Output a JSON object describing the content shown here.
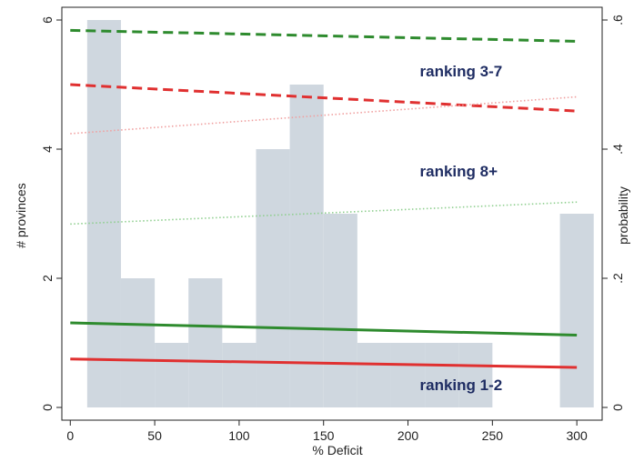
{
  "chart_data": {
    "type": "bar",
    "x_label": "% Deficit",
    "y_label_left": "# provinces",
    "y_label_right": "probability",
    "x_ticks": [
      "0",
      "50",
      "100",
      "150",
      "200",
      "250",
      "300"
    ],
    "y_left_ticks": [
      "0",
      "2",
      "4",
      "6"
    ],
    "y_right_ticks": [
      "0",
      ".2",
      ".4",
      ".6"
    ],
    "x_range": [
      -5,
      315
    ],
    "y_left_range": [
      0,
      6
    ],
    "y_right_range": [
      0,
      0.6
    ],
    "grid": false,
    "colors": {
      "bar": "#cfd7df",
      "green": "#2e8b2e",
      "red": "#e03030",
      "pink_dotted": "#f0a0a0",
      "green_dotted": "#8fcf8f",
      "annotation": "#1f2d63"
    },
    "histogram": [
      {
        "x0": 10,
        "x1": 30,
        "value": 6
      },
      {
        "x0": 30,
        "x1": 50,
        "value": 2
      },
      {
        "x0": 50,
        "x1": 70,
        "value": 1
      },
      {
        "x0": 70,
        "x1": 90,
        "value": 2
      },
      {
        "x0": 90,
        "x1": 110,
        "value": 1
      },
      {
        "x0": 110,
        "x1": 130,
        "value": 4
      },
      {
        "x0": 130,
        "x1": 150,
        "value": 5
      },
      {
        "x0": 150,
        "x1": 170,
        "value": 3
      },
      {
        "x0": 170,
        "x1": 190,
        "value": 1
      },
      {
        "x0": 190,
        "x1": 210,
        "value": 1
      },
      {
        "x0": 210,
        "x1": 230,
        "value": 1
      },
      {
        "x0": 230,
        "x1": 250,
        "value": 1
      },
      {
        "x0": 290,
        "x1": 310,
        "value": 3
      }
    ],
    "lines": [
      {
        "color_key": "green",
        "style": "dashed",
        "axis": "right",
        "x": [
          0,
          300
        ],
        "y": [
          0.584,
          0.567
        ]
      },
      {
        "color_key": "red",
        "style": "dashed",
        "axis": "right",
        "x": [
          0,
          300
        ],
        "y": [
          0.5,
          0.459
        ]
      },
      {
        "color_key": "pink_dotted",
        "style": "dotted",
        "axis": "right",
        "x": [
          0,
          300
        ],
        "y": [
          0.424,
          0.481
        ]
      },
      {
        "color_key": "green_dotted",
        "style": "dotted",
        "axis": "right",
        "x": [
          0,
          300
        ],
        "y": [
          0.284,
          0.318
        ]
      },
      {
        "color_key": "green",
        "style": "solid",
        "axis": "right",
        "x": [
          0,
          300
        ],
        "y": [
          0.131,
          0.112
        ]
      },
      {
        "color_key": "red",
        "style": "solid",
        "axis": "right",
        "x": [
          0,
          300
        ],
        "y": [
          0.075,
          0.062
        ]
      }
    ],
    "annotations": [
      {
        "text": "ranking 3-7",
        "x": 207,
        "y": 0.513
      },
      {
        "text": "ranking 8+",
        "x": 207,
        "y": 0.358
      },
      {
        "text": "ranking 1-2",
        "x": 207,
        "y": 0.027
      }
    ]
  }
}
